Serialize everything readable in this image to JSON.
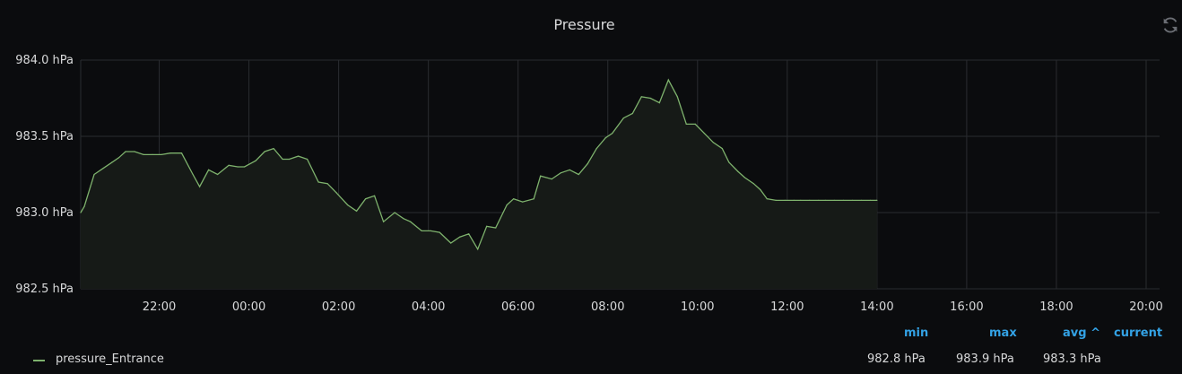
{
  "panel": {
    "title": "Pressure",
    "refresh_icon": "refresh-icon"
  },
  "legend": {
    "headers": {
      "min": "min",
      "max": "max",
      "avg": "avg ^",
      "current": "current"
    },
    "series": [
      {
        "name": "pressure_Entrance",
        "min": "982.8 hPa",
        "max": "983.9 hPa",
        "avg": "983.3 hPa",
        "current": ""
      }
    ]
  },
  "colors": {
    "background": "#0b0c0e",
    "grid": "#2a2c30",
    "series": "#7eb26d",
    "fill": "#161a17",
    "legend_header": "#33a2e5",
    "text": "#d8d9da"
  },
  "chart_data": {
    "type": "area",
    "title": "Pressure",
    "xlabel": "",
    "ylabel": "",
    "unit": "hPa",
    "ylim": [
      982.5,
      984.0
    ],
    "y_ticks": [
      "982.5 hPa",
      "983.0 hPa",
      "983.5 hPa",
      "984.0 hPa"
    ],
    "x_ticks": [
      "22:00",
      "00:00",
      "02:00",
      "04:00",
      "06:00",
      "08:00",
      "10:00",
      "12:00",
      "14:00",
      "16:00",
      "18:00",
      "20:00"
    ],
    "xlim_hours": [
      20.25,
      44.3
    ],
    "grid": true,
    "legend_position": "bottom-left",
    "series": [
      {
        "name": "pressure_Entrance",
        "x_hours": [
          20.25,
          20.33,
          20.55,
          20.75,
          20.95,
          21.1,
          21.25,
          21.45,
          21.65,
          21.85,
          22.05,
          22.25,
          22.5,
          22.75,
          22.9,
          23.1,
          23.3,
          23.55,
          23.75,
          23.9,
          24.15,
          24.35,
          24.55,
          24.75,
          24.9,
          25.1,
          25.3,
          25.55,
          25.75,
          25.95,
          26.2,
          26.4,
          26.6,
          26.8,
          27.0,
          27.25,
          27.45,
          27.6,
          27.85,
          28.05,
          28.25,
          28.5,
          28.7,
          28.9,
          29.1,
          29.3,
          29.5,
          29.75,
          29.9,
          30.1,
          30.35,
          30.5,
          30.75,
          30.95,
          31.15,
          31.35,
          31.55,
          31.75,
          31.95,
          32.1,
          32.35,
          32.55,
          32.75,
          32.95,
          33.15,
          33.35,
          33.55,
          33.75,
          33.95,
          34.15,
          34.35,
          34.55,
          34.7,
          34.9,
          35.05,
          35.25,
          35.4,
          35.55,
          35.75,
          35.95,
          36.15,
          36.3,
          36.5,
          36.7,
          36.85,
          37.05,
          37.25,
          37.45,
          37.65,
          37.85,
          38.0
        ],
        "values": [
          983.0,
          983.04,
          983.25,
          983.29,
          983.33,
          983.36,
          983.4,
          983.4,
          983.38,
          983.38,
          983.38,
          983.39,
          983.39,
          983.25,
          983.17,
          983.28,
          983.25,
          983.31,
          983.3,
          983.3,
          983.34,
          983.4,
          983.42,
          983.35,
          983.35,
          983.37,
          983.35,
          983.2,
          983.19,
          983.13,
          983.05,
          983.01,
          983.09,
          983.11,
          982.94,
          983.0,
          982.96,
          982.94,
          982.88,
          982.88,
          982.87,
          982.8,
          982.84,
          982.86,
          982.76,
          982.91,
          982.9,
          983.05,
          983.09,
          983.07,
          983.09,
          983.24,
          983.22,
          983.26,
          983.28,
          983.25,
          983.32,
          983.42,
          983.49,
          983.52,
          983.62,
          983.65,
          983.76,
          983.75,
          983.72,
          983.87,
          983.76,
          983.58,
          983.58,
          983.52,
          983.46,
          983.42,
          983.33,
          983.27,
          983.23,
          983.19,
          983.15,
          983.09,
          983.08,
          983.08,
          983.08,
          983.08,
          983.08,
          983.08,
          983.08,
          983.08,
          983.08,
          983.08,
          983.08,
          983.08,
          983.08
        ]
      }
    ]
  }
}
